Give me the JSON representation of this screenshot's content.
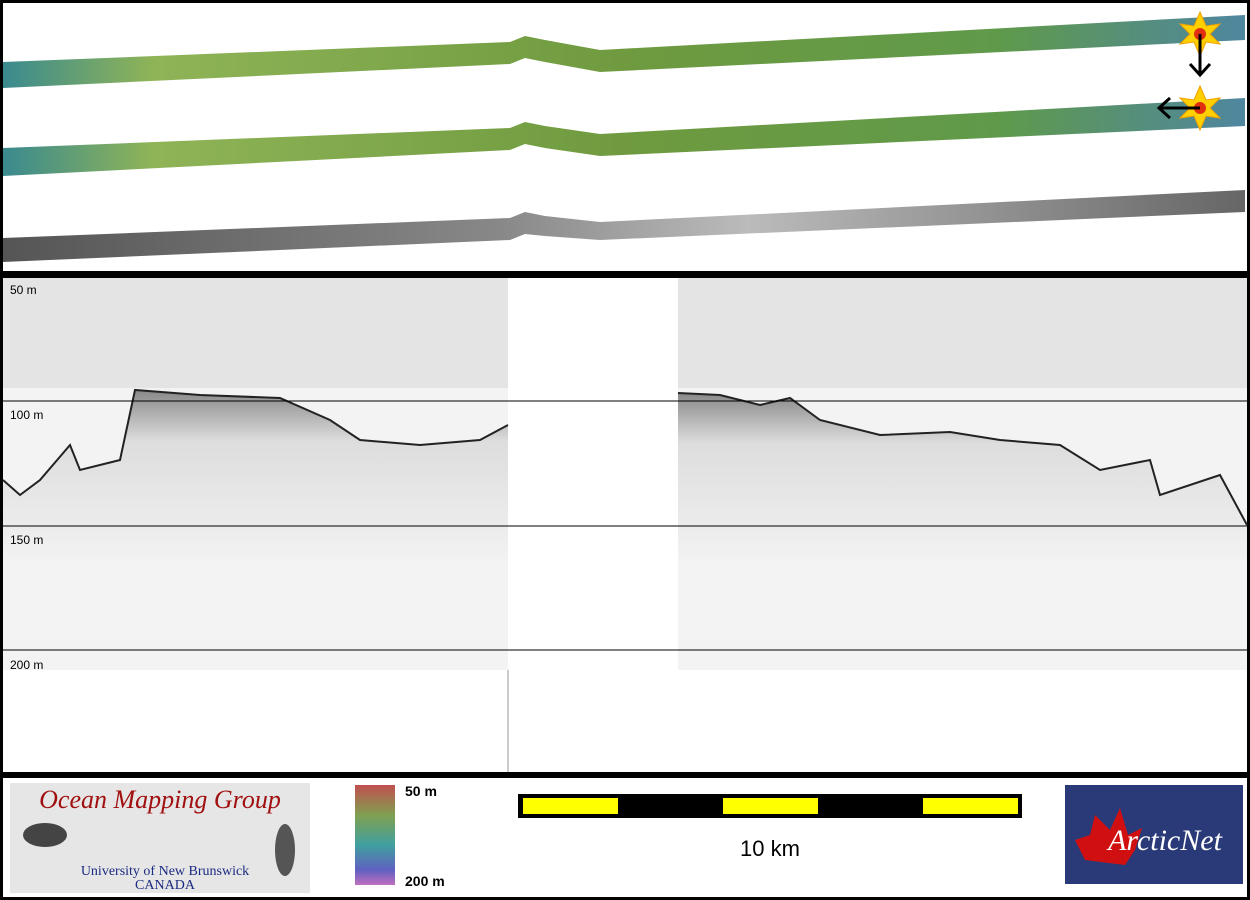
{
  "profile": {
    "depth_labels": [
      "50 m",
      "100 m",
      "150 m",
      "200 m"
    ]
  },
  "logos": {
    "omg": {
      "title": "Ocean Mapping Group",
      "subtitle": "University of New Brunswick",
      "country": "CANADA"
    },
    "arcticnet": "ArcticNet"
  },
  "colorbar": {
    "top": "50 m",
    "bottom": "200 m"
  },
  "scale_bar": {
    "label": "10 km"
  }
}
